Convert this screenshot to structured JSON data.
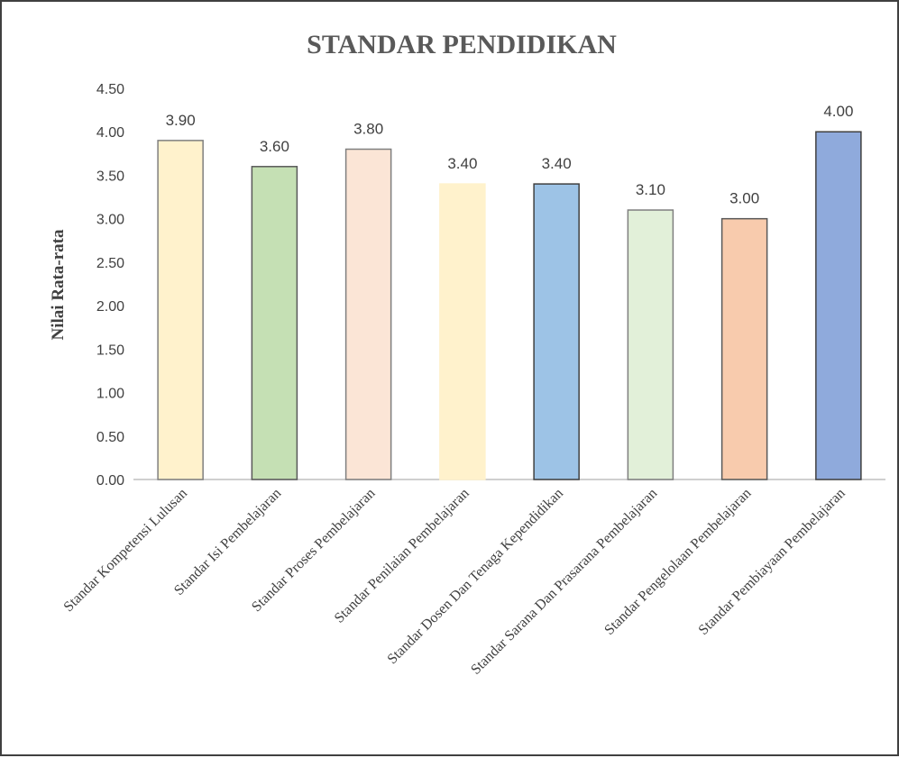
{
  "chart_data": {
    "type": "bar",
    "title": "STANDAR PENDIDIKAN",
    "ylabel": "Nilai Rata-rata",
    "xlabel": "",
    "ylim": [
      0,
      4.5
    ],
    "yticks": [
      "0.00",
      "0.50",
      "1.00",
      "1.50",
      "2.00",
      "2.50",
      "3.00",
      "3.50",
      "4.00",
      "4.50"
    ],
    "ytick_values": [
      0,
      0.5,
      1,
      1.5,
      2,
      2.5,
      3,
      3.5,
      4,
      4.5
    ],
    "grid": false,
    "categories": [
      "Standar Kompetensi Lulusan",
      "Standar Isi Pembelajaran",
      "Standar Proses Pembelajaran",
      "Standar Penilaian Pembelajaran",
      "Standar Dosen Dan Tenaga Kependidikan",
      "Standar Sarana Dan Prasarana Pembelajaran",
      "Standar Pengelolaan Pembelajaran",
      "Standar Pembiayaan Pembelajaran"
    ],
    "values": [
      3.9,
      3.6,
      3.8,
      3.4,
      3.4,
      3.1,
      3.0,
      4.0
    ],
    "data_labels": [
      "3.90",
      "3.60",
      "3.80",
      "3.40",
      "3.40",
      "3.10",
      "3.00",
      "4.00"
    ],
    "colors": [
      "#FFF2CC",
      "#C5E0B4",
      "#FBE5D6",
      "#FFF2CC",
      "#9DC3E6",
      "#E2F0D9",
      "#F8CBAD",
      "#8FAADC"
    ],
    "edge_colors": [
      "#7F7F7F",
      "#595959",
      "#7F7F7F",
      "#FFF2CC",
      "#404040",
      "#7F7F7F",
      "#595959",
      "#404040"
    ]
  }
}
